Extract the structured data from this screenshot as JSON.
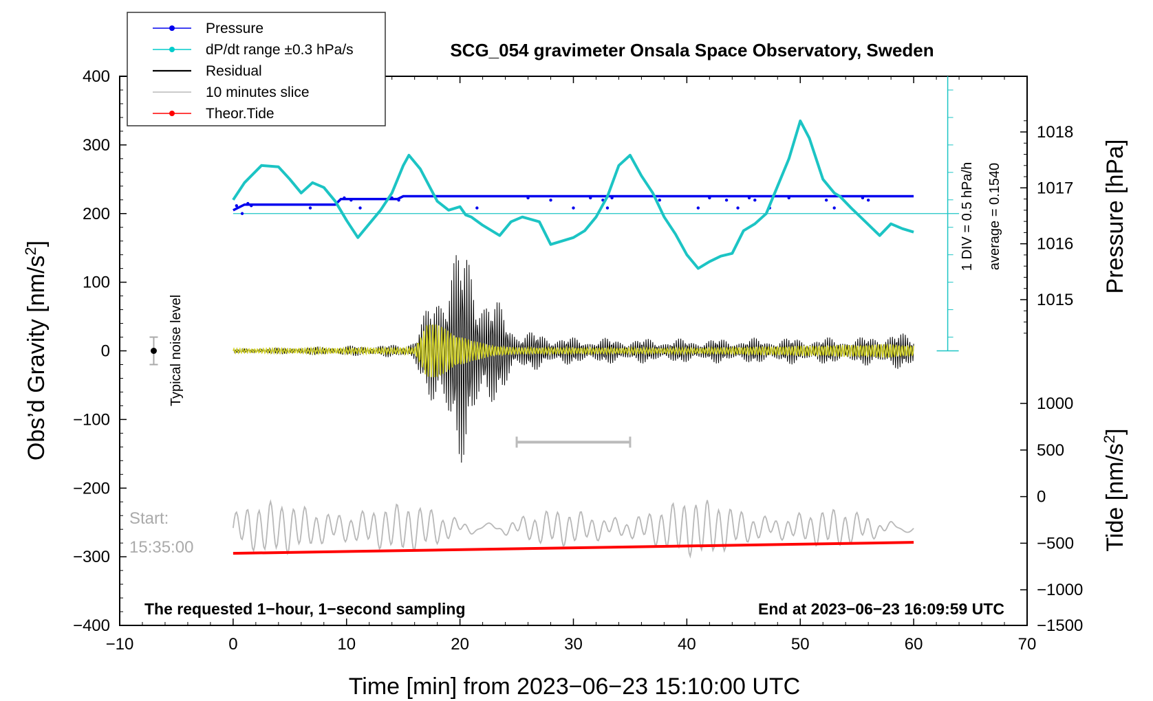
{
  "chart_data": {
    "type": "line",
    "title": "SCG_054 gravimeter Onsala Space Observatory, Sweden",
    "xlabel": "Time [min] from 2023−06−23 15:10:00 UTC",
    "ylabel_left": "Obs’d Gravity [nm/s",
    "ylabel_left_sup": "2",
    "ylabel_left_end": "]",
    "ylabel_right_pressure": "Pressure [hPa]",
    "ylabel_right_tide": "Tide [nm/s",
    "ylabel_right_tide_sup": "2",
    "ylabel_right_tide_end": "]",
    "xlim": [
      -10,
      70
    ],
    "ylim": [
      -400,
      400
    ],
    "x_ticks": [
      -10,
      0,
      10,
      20,
      30,
      40,
      50,
      60,
      70
    ],
    "x_tick_labels": [
      "−10",
      "0",
      "10",
      "20",
      "30",
      "40",
      "50",
      "60",
      "70"
    ],
    "y_ticks": [
      400,
      300,
      200,
      100,
      0,
      -100,
      -200,
      -300,
      -400
    ],
    "y_tick_labels": [
      "400",
      "300",
      "200",
      "100",
      "0",
      "−100",
      "−200",
      "−300",
      "−400"
    ],
    "pressure_ticks": [
      1018,
      1017,
      1016,
      1015
    ],
    "pressure_tick_labels": [
      "1018",
      "1017",
      "1016",
      "1015"
    ],
    "tide_ticks": [
      1000,
      500,
      0,
      -500,
      -1000,
      -1500
    ],
    "tide_tick_labels": [
      "1000",
      "500",
      "0",
      "−500",
      "−1000",
      "−1500"
    ],
    "legend": [
      {
        "label": "Pressure",
        "color": "#0000ee",
        "marker": "dot"
      },
      {
        "label": "dP/dt range ±0.3 hPa/s",
        "color": "#00cccc",
        "marker": "dot"
      },
      {
        "label": "Residual",
        "color": "#000000",
        "marker": "none"
      },
      {
        "label": "10 minutes slice",
        "color": "#b8b8b8",
        "marker": "none"
      },
      {
        "label": "Theor.Tide",
        "color": "#ff0000",
        "marker": "dot"
      }
    ],
    "annotations": {
      "noise_label": "Typical noise level",
      "div_label": "1 DIV = 0.5 hPa/h",
      "average_label": "average = 0.1540",
      "start_label": "Start:",
      "start_time": "15:35:00",
      "footer_left": "The requested 1−hour, 1−second sampling",
      "footer_right": "End at 2023−06−23 16:09:59 UTC"
    },
    "series": [
      {
        "name": "Pressure",
        "color": "#0000ee",
        "x": [
          0,
          1,
          9,
          9.5,
          14.5,
          15,
          40,
          60
        ],
        "y": [
          1016.6,
          1016.7,
          1016.7,
          1016.8,
          1016.8,
          1016.85,
          1016.85,
          1016.85
        ]
      },
      {
        "name": "dP/dt",
        "color": "#1cc4c4",
        "x": [
          0,
          1,
          2.5,
          4,
          5,
          6,
          7,
          8,
          9,
          10,
          11,
          12,
          13,
          14,
          15,
          15.5,
          16.5,
          18,
          19,
          20,
          20.5,
          21,
          22,
          23.5,
          24.5,
          25.5,
          27,
          28,
          29,
          30,
          31,
          32,
          33,
          34,
          35,
          36,
          37,
          38,
          39,
          40,
          41,
          42,
          43,
          44,
          45,
          46,
          47,
          48,
          49,
          50,
          50.8,
          52,
          53,
          53.5,
          54.5,
          55.5,
          57,
          58,
          59,
          60
        ],
        "y": [
          220,
          245,
          270,
          268,
          250,
          230,
          245,
          238,
          218,
          190,
          165,
          185,
          205,
          230,
          270,
          285,
          265,
          218,
          205,
          210,
          198,
          195,
          183,
          168,
          188,
          195,
          188,
          155,
          160,
          165,
          175,
          195,
          225,
          270,
          285,
          255,
          230,
          195,
          170,
          140,
          120,
          130,
          138,
          142,
          175,
          185,
          200,
          240,
          280,
          335,
          310,
          250,
          230,
          225,
          208,
          192,
          168,
          185,
          178,
          173
        ]
      },
      {
        "name": "Theor.Tide",
        "color": "#ff0000",
        "x": [
          0,
          60
        ],
        "y": [
          -295,
          -279
        ]
      }
    ],
    "pressure_reference_line": 1016.55,
    "noise_bar": {
      "x": -7,
      "y": 0,
      "err": 20
    },
    "slice_marker": {
      "x_start": 25,
      "x_end": 35,
      "y": -133
    },
    "residual_envelope": {
      "x": [
        0,
        15,
        16,
        17,
        18,
        19,
        20,
        21,
        22,
        23,
        24,
        25,
        26,
        30,
        40,
        50,
        55,
        58,
        60
      ],
      "amp": [
        3,
        10,
        20,
        60,
        110,
        150,
        165,
        150,
        110,
        80,
        60,
        35,
        30,
        20,
        18,
        20,
        20,
        28,
        25
      ]
    },
    "yellow_envelope": {
      "x": [
        0,
        16,
        17,
        18,
        19,
        20,
        21,
        23,
        25,
        40,
        58,
        60
      ],
      "amp": [
        3,
        5,
        40,
        38,
        32,
        25,
        15,
        8,
        5,
        4,
        10,
        8
      ]
    }
  }
}
